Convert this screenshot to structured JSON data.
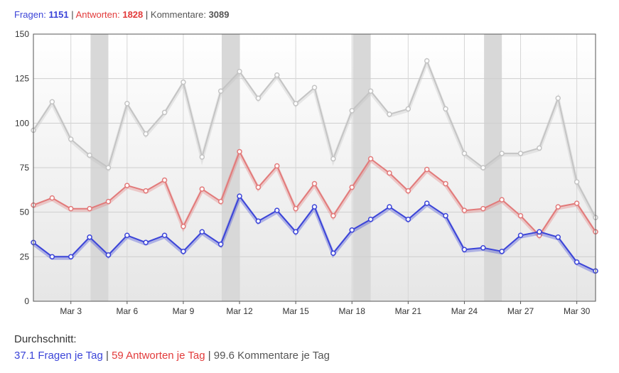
{
  "header": {
    "fragen_label": "Fragen:",
    "fragen_count": "1151",
    "antworten_label": "Antworten:",
    "antworten_count": "1828",
    "kommentare_label": "Kommentare:",
    "kommentare_count": "3089",
    "separator": "|"
  },
  "footer": {
    "title": "Durchschnitt:",
    "fragen_avg": "37.1 Fragen je Tag",
    "antworten_avg": "59 Antworten je Tag",
    "kommentare_avg": "99.6 Kommentare je Tag",
    "separator": "|"
  },
  "chart_data": {
    "type": "line",
    "x": [
      "Mar 1",
      "Mar 2",
      "Mar 3",
      "Mar 4",
      "Mar 5",
      "Mar 6",
      "Mar 7",
      "Mar 8",
      "Mar 9",
      "Mar 10",
      "Mar 11",
      "Mar 12",
      "Mar 13",
      "Mar 14",
      "Mar 15",
      "Mar 16",
      "Mar 17",
      "Mar 18",
      "Mar 19",
      "Mar 20",
      "Mar 21",
      "Mar 22",
      "Mar 23",
      "Mar 24",
      "Mar 25",
      "Mar 26",
      "Mar 27",
      "Mar 28",
      "Mar 29",
      "Mar 30",
      "Mar 31"
    ],
    "x_tick_labels": [
      "Mar 3",
      "Mar 6",
      "Mar 9",
      "Mar 12",
      "Mar 15",
      "Mar 18",
      "Mar 21",
      "Mar 24",
      "Mar 27",
      "Mar 30"
    ],
    "y_ticks": [
      0,
      25,
      50,
      75,
      100,
      125,
      150
    ],
    "ylim": [
      0,
      150
    ],
    "grid": true,
    "weekend_bands": [
      [
        "Mar 4",
        "Mar 5"
      ],
      [
        "Mar 11",
        "Mar 12"
      ],
      [
        "Mar 18",
        "Mar 19"
      ],
      [
        "Mar 25",
        "Mar 26"
      ]
    ],
    "series": [
      {
        "key": "kommentare",
        "color": "#c4c4c4",
        "values": [
          96,
          112,
          91,
          82,
          75,
          111,
          94,
          106,
          123,
          81,
          118,
          129,
          114,
          127,
          111,
          120,
          80,
          107,
          118,
          105,
          108,
          135,
          108,
          83,
          75,
          83,
          83,
          86,
          114,
          67,
          47
        ]
      },
      {
        "key": "antworten",
        "color": "#e27a7a",
        "values": [
          54,
          58,
          52,
          52,
          56,
          65,
          62,
          68,
          42,
          63,
          56,
          84,
          64,
          76,
          52,
          66,
          48,
          64,
          80,
          72,
          62,
          74,
          66,
          51,
          52,
          57,
          48,
          37,
          53,
          55,
          39
        ]
      },
      {
        "key": "fragen",
        "color": "#3b44d8",
        "values": [
          33,
          25,
          25,
          36,
          26,
          37,
          33,
          37,
          28,
          39,
          32,
          59,
          45,
          51,
          39,
          53,
          27,
          40,
          46,
          53,
          46,
          55,
          48,
          29,
          30,
          28,
          37,
          39,
          36,
          22,
          17
        ]
      }
    ]
  }
}
